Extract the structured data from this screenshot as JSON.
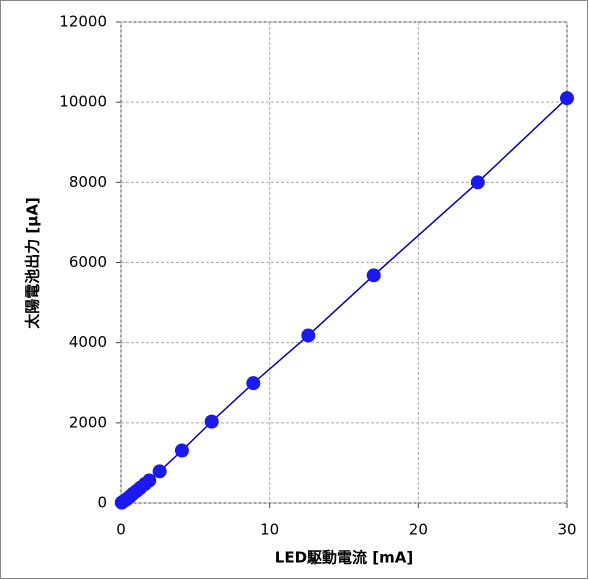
{
  "chart_data": {
    "type": "scatter",
    "x_label": "LED駆動電流 [mA]",
    "y_label": "太陽電池出力 [μA]",
    "x": [
      0.05,
      0.2,
      0.4,
      0.6,
      0.8,
      1.05,
      1.3,
      1.6,
      1.9,
      2.6,
      4.1,
      6.1,
      8.9,
      12.6,
      17,
      24,
      30
    ],
    "series": [
      {
        "color": "#1a1aee",
        "values": [
          10,
          50,
          100,
          160,
          230,
          300,
          380,
          470,
          560,
          790,
          1310,
          2030,
          2990,
          4180,
          5680,
          8000,
          10100
        ]
      }
    ],
    "xlim": [
      0,
      30
    ],
    "xticks": [
      0,
      10,
      20,
      30
    ],
    "ylim": [
      0,
      12000
    ],
    "yticks": [
      0,
      2000,
      4000,
      6000,
      8000,
      10000,
      12000
    ],
    "grid": true
  }
}
